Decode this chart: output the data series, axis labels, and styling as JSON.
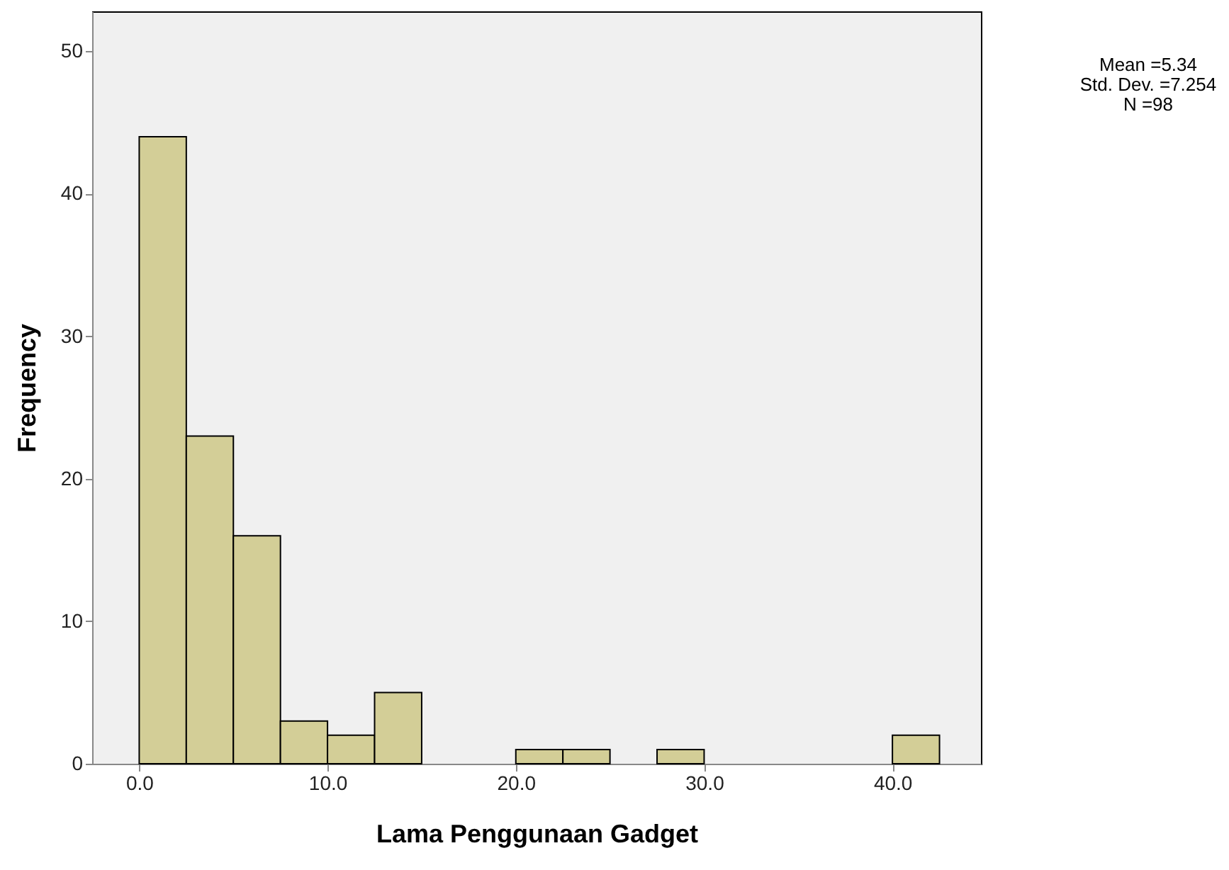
{
  "chart_data": {
    "type": "histogram",
    "xlabel": "Lama Penggunaan Gadget",
    "ylabel": "Frequency",
    "bins": [
      0,
      2.5,
      5,
      7.5,
      10,
      12.5,
      15,
      17.5,
      20,
      22.5,
      25,
      27.5,
      30,
      32.5,
      35,
      37.5,
      40,
      42.5
    ],
    "values": [
      44,
      23,
      16,
      3,
      2,
      5,
      0,
      0,
      1,
      1,
      0,
      1,
      0,
      0,
      0,
      0,
      2
    ],
    "color": "#d3ce97",
    "xlim": [
      -2.5,
      44.7
    ],
    "ylim": [
      0,
      52.8
    ],
    "xticks": [
      {
        "value": 0,
        "label": "0.0"
      },
      {
        "value": 10,
        "label": "10.0"
      },
      {
        "value": 20,
        "label": "20.0"
      },
      {
        "value": 30,
        "label": "30.0"
      },
      {
        "value": 40,
        "label": "40.0"
      }
    ],
    "yticks": [
      0,
      10,
      20,
      30,
      40,
      50
    ],
    "annotations": [
      "Mean =5.34",
      "Std. Dev. =7.254",
      "N =98"
    ]
  }
}
